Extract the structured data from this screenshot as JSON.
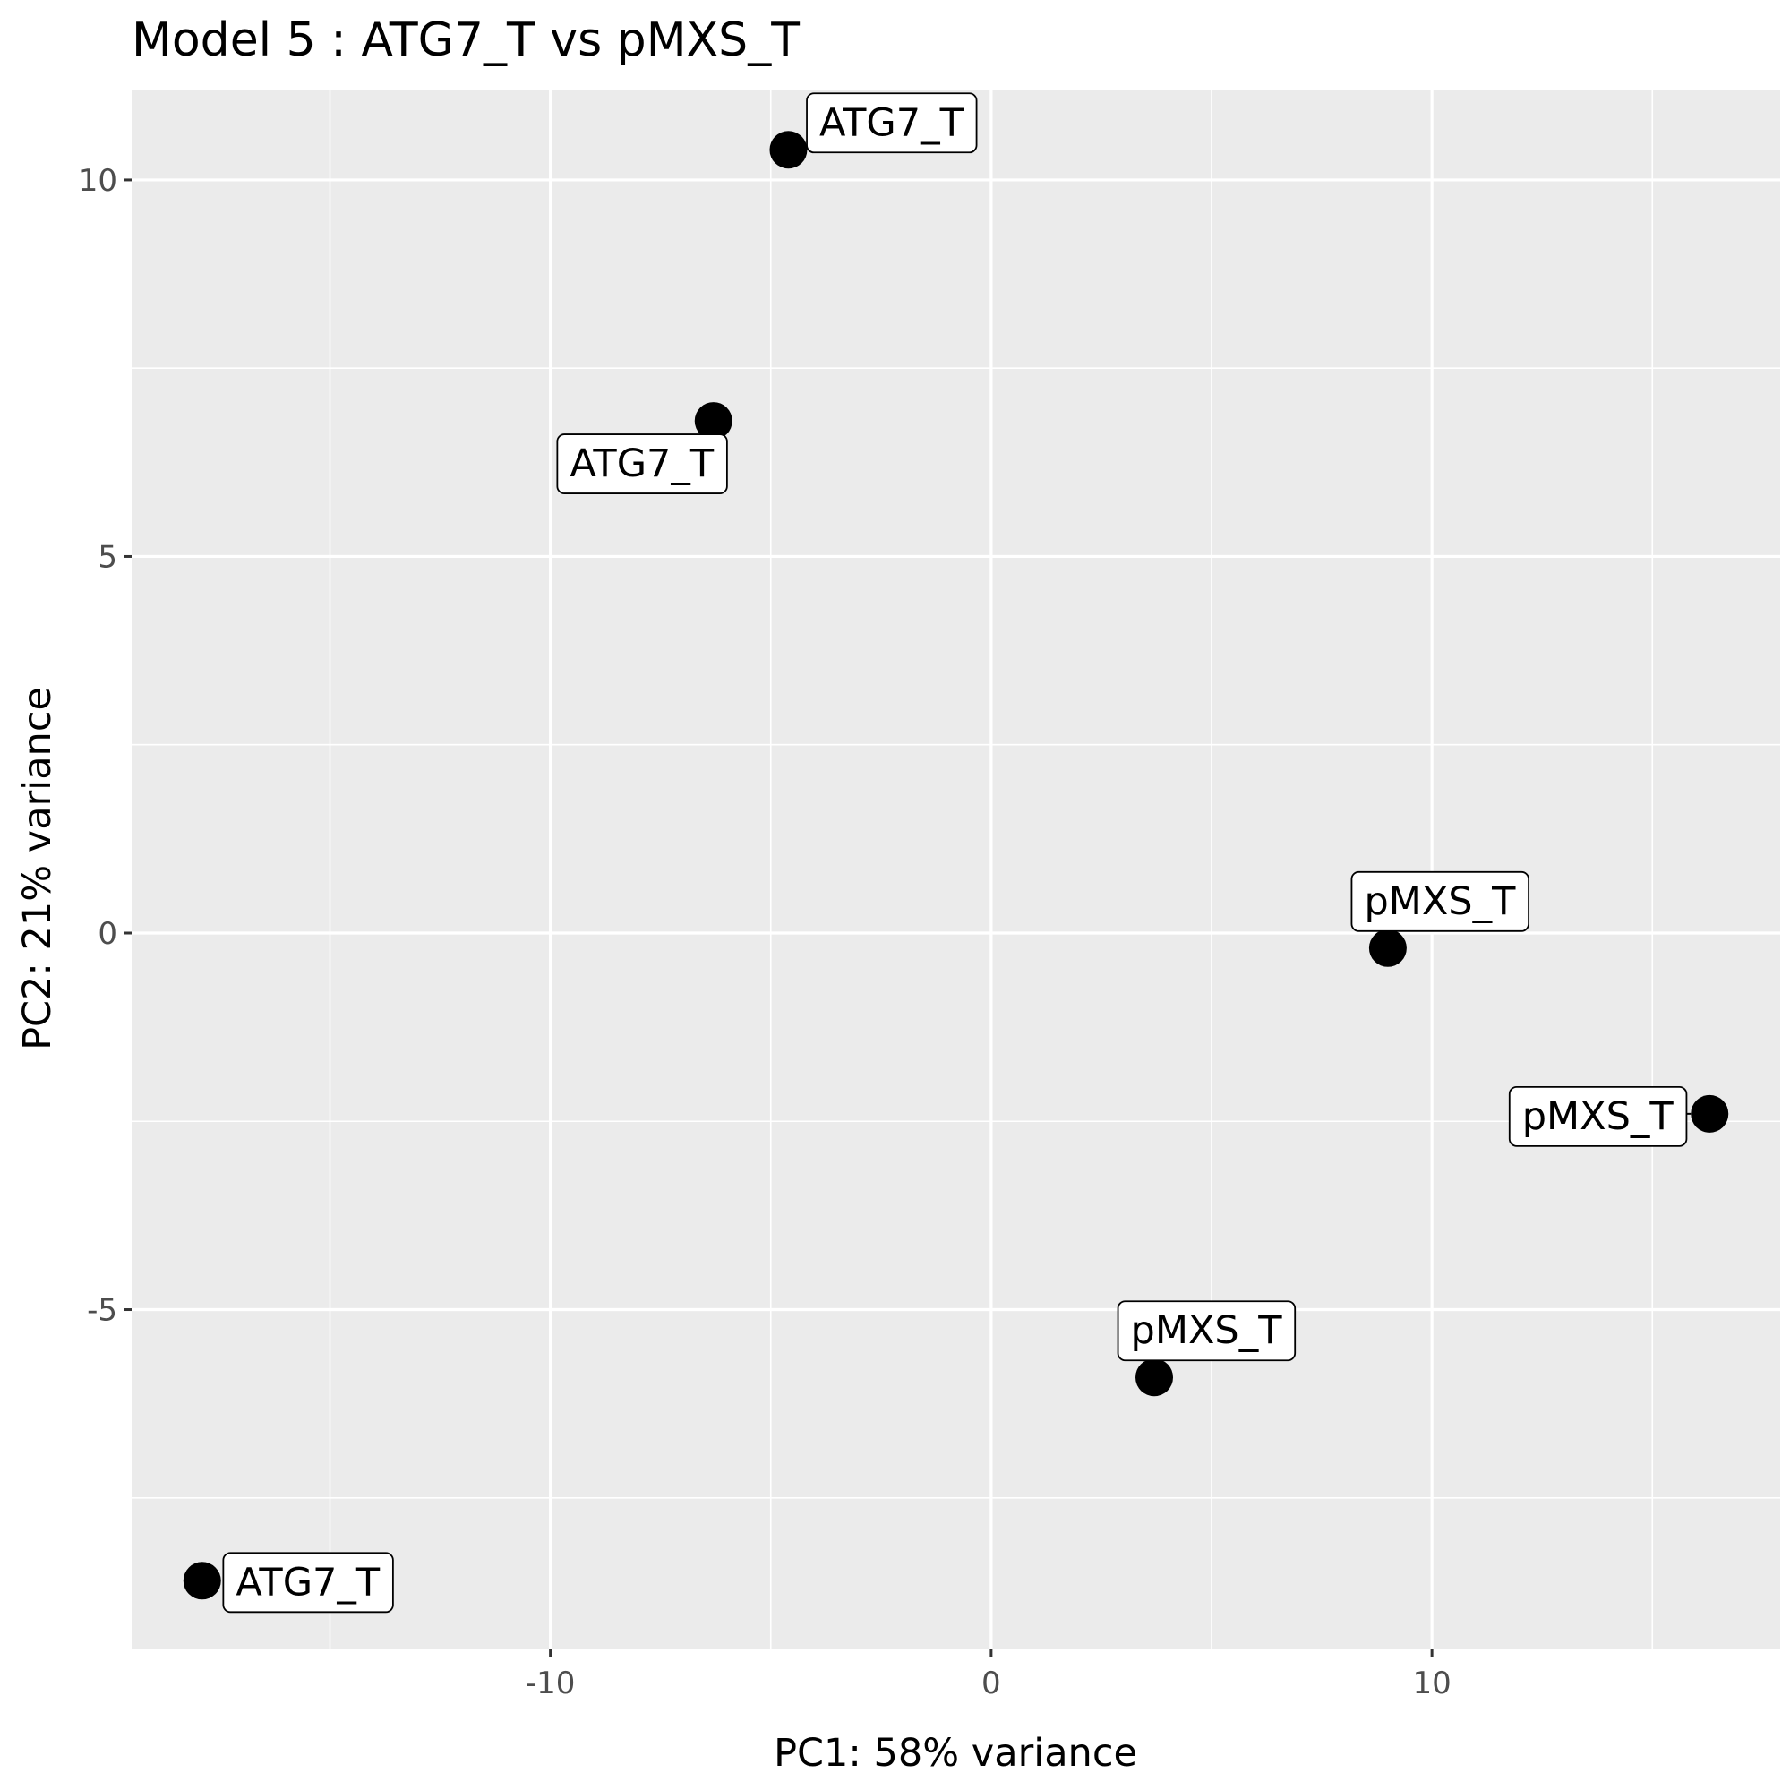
{
  "chart_data": {
    "type": "scatter",
    "title": "Model 5 : ATG7_T vs pMXS_T",
    "xlabel": "PC1: 58% variance",
    "ylabel": "PC2: 21% variance",
    "xlim": [
      -19.5,
      17.9
    ],
    "ylim": [
      -9.5,
      11.2
    ],
    "x_major_ticks": [
      -10,
      0,
      10
    ],
    "x_minor_ticks": [
      -15,
      -5,
      5,
      15
    ],
    "y_major_ticks": [
      -5,
      0,
      5,
      10
    ],
    "y_minor_ticks": [
      -7.5,
      -2.5,
      2.5,
      7.5
    ],
    "x_tick_labels": [
      "-10",
      "0",
      "10"
    ],
    "y_tick_labels": [
      "-5",
      "0",
      "5",
      "10"
    ],
    "grid": true,
    "panel_background": "#ebebeb",
    "grid_color": "#ffffff",
    "point_color": "#000000",
    "points": [
      {
        "x": -4.6,
        "y": 10.4,
        "label": "ATG7_T",
        "label_side": "right-up"
      },
      {
        "x": -6.3,
        "y": 6.8,
        "label": "ATG7_T",
        "label_side": "left-down"
      },
      {
        "x": -17.9,
        "y": -8.6,
        "label": "ATG7_T",
        "label_side": "right"
      },
      {
        "x": 9.0,
        "y": -0.2,
        "label": "pMXS_T",
        "label_side": "up"
      },
      {
        "x": 16.3,
        "y": -2.4,
        "label": "pMXS_T",
        "label_side": "left"
      },
      {
        "x": 3.7,
        "y": -5.9,
        "label": "pMXS_T",
        "label_side": "up"
      }
    ]
  }
}
